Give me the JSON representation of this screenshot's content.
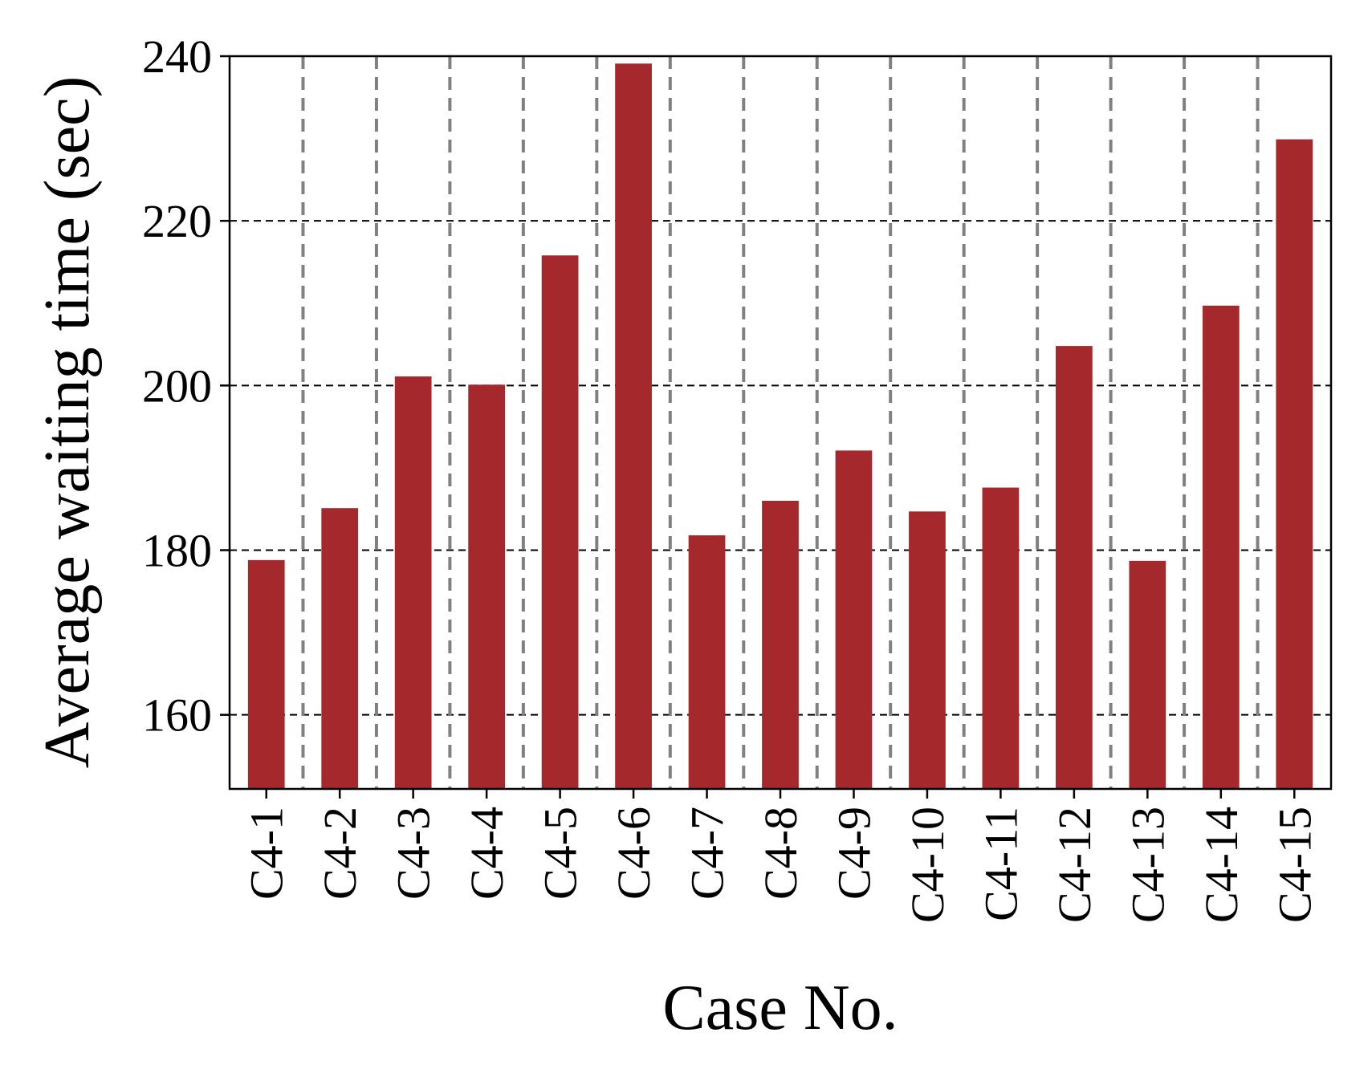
{
  "chart_data": {
    "type": "bar",
    "title": "",
    "xlabel": "Case No.",
    "ylabel": "Average waiting time (sec)",
    "categories": [
      "C4-1",
      "C4-2",
      "C4-3",
      "C4-4",
      "C4-5",
      "C4-6",
      "C4-7",
      "C4-8",
      "C4-9",
      "C4-10",
      "C4-11",
      "C4-12",
      "C4-13",
      "C4-14",
      "C4-15"
    ],
    "values": [
      178.8,
      185.1,
      201.1,
      200.1,
      215.8,
      239.1,
      181.8,
      186.0,
      192.1,
      184.7,
      187.6,
      204.8,
      178.7,
      209.7,
      229.9
    ],
    "ylim": [
      151,
      240
    ],
    "yticks": [
      160,
      180,
      200,
      220,
      240
    ],
    "ytick_labels": [
      "160",
      "180",
      "200",
      "220",
      "240"
    ],
    "grid": {
      "horizontal": true,
      "vertical_separators": true
    },
    "colors": {
      "bar": "#a5282c",
      "grid_horizontal": "#000000",
      "grid_vertical": "#808080",
      "axes": "#000000"
    }
  }
}
